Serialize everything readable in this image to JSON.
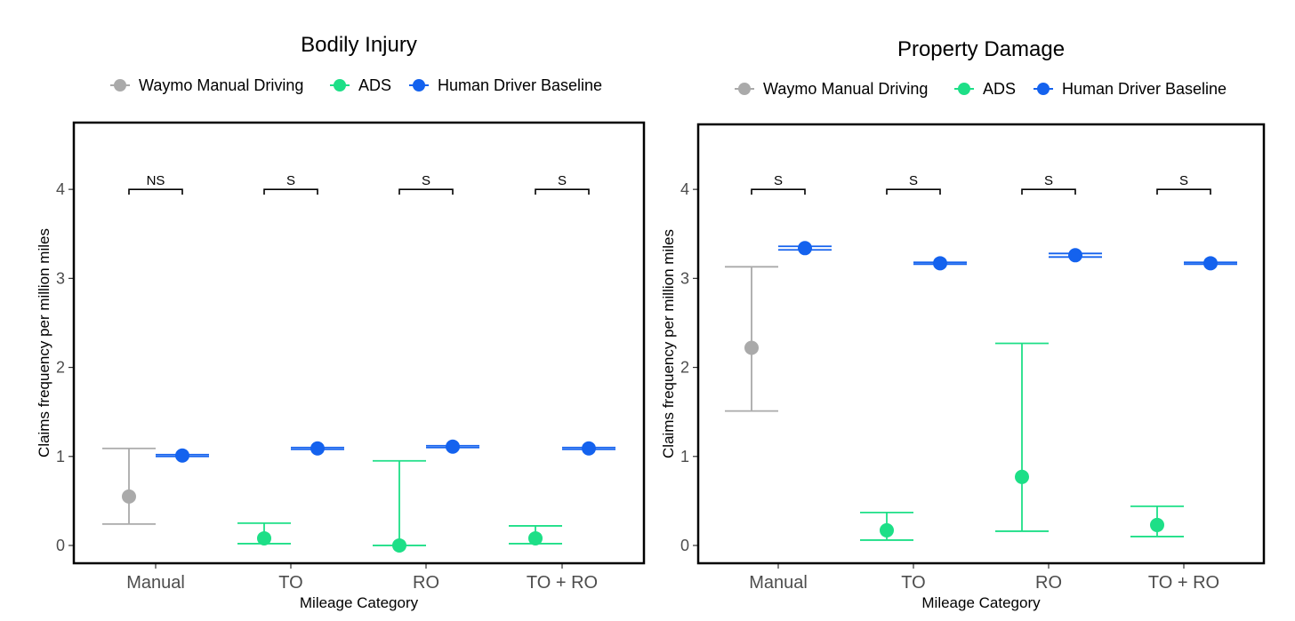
{
  "legend": [
    {
      "name": "Waymo Manual Driving",
      "color": "#aaaaaa"
    },
    {
      "name": "ADS",
      "color": "#1ddf87"
    },
    {
      "name": "Human Driver Baseline",
      "color": "#1462ee"
    }
  ],
  "chart_data": [
    {
      "type": "scatter",
      "title": "Bodily Injury",
      "xlabel": "Mileage Category",
      "ylabel": "Claims frequency per million miles",
      "categories": [
        "Manual",
        "TO",
        "RO",
        "TO + RO"
      ],
      "ylim": [
        -0.2,
        4.75
      ],
      "yticks": [
        "0",
        "1",
        "2",
        "3",
        "4"
      ],
      "grid": false,
      "legend_position": "top",
      "significance": [
        "NS",
        "S",
        "S",
        "S"
      ],
      "significance_y": 4.0,
      "series": [
        {
          "name": "Waymo Manual Driving",
          "points": [
            {
              "category": "Manual",
              "y": 0.55,
              "low": 0.24,
              "high": 1.09
            }
          ]
        },
        {
          "name": "ADS",
          "points": [
            {
              "category": "TO",
              "y": 0.08,
              "low": 0.02,
              "high": 0.25
            },
            {
              "category": "RO",
              "y": 0.0,
              "low": 0.0,
              "high": 0.95
            },
            {
              "category": "TO + RO",
              "y": 0.08,
              "low": 0.02,
              "high": 0.22
            }
          ]
        },
        {
          "name": "Human Driver Baseline",
          "points": [
            {
              "category": "Manual",
              "y": 1.01,
              "low": 1.0,
              "high": 1.02
            },
            {
              "category": "TO",
              "y": 1.09,
              "low": 1.08,
              "high": 1.1
            },
            {
              "category": "RO",
              "y": 1.11,
              "low": 1.1,
              "high": 1.12
            },
            {
              "category": "TO + RO",
              "y": 1.09,
              "low": 1.08,
              "high": 1.1
            }
          ]
        }
      ]
    },
    {
      "type": "scatter",
      "title": "Property Damage",
      "xlabel": "Mileage Category",
      "ylabel": "Claims frequency per million miles",
      "categories": [
        "Manual",
        "TO",
        "RO",
        "TO + RO"
      ],
      "ylim": [
        -0.2,
        4.73
      ],
      "yticks": [
        "0",
        "1",
        "2",
        "3",
        "4"
      ],
      "grid": false,
      "legend_position": "top",
      "significance": [
        "S",
        "S",
        "S",
        "S"
      ],
      "significance_y": 4.0,
      "series": [
        {
          "name": "Waymo Manual Driving",
          "points": [
            {
              "category": "Manual",
              "y": 2.22,
              "low": 1.51,
              "high": 3.13
            }
          ]
        },
        {
          "name": "ADS",
          "points": [
            {
              "category": "TO",
              "y": 0.17,
              "low": 0.06,
              "high": 0.37
            },
            {
              "category": "RO",
              "y": 0.77,
              "low": 0.16,
              "high": 2.27
            },
            {
              "category": "TO + RO",
              "y": 0.23,
              "low": 0.1,
              "high": 0.44
            }
          ]
        },
        {
          "name": "Human Driver Baseline",
          "points": [
            {
              "category": "Manual",
              "y": 3.34,
              "low": 3.32,
              "high": 3.36
            },
            {
              "category": "TO",
              "y": 3.17,
              "low": 3.16,
              "high": 3.18
            },
            {
              "category": "RO",
              "y": 3.26,
              "low": 3.24,
              "high": 3.28
            },
            {
              "category": "TO + RO",
              "y": 3.17,
              "low": 3.16,
              "high": 3.18
            }
          ]
        }
      ]
    }
  ]
}
